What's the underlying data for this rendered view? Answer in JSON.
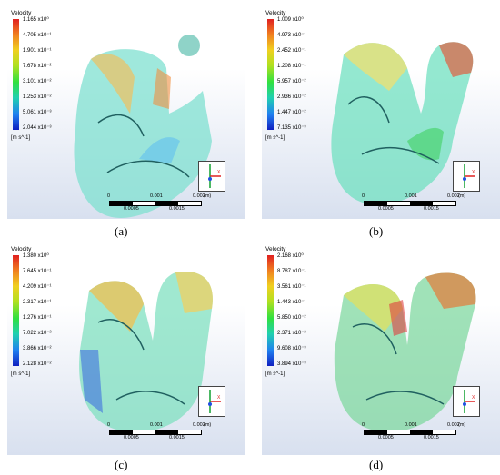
{
  "panels": [
    {
      "legend_title": "Velocity",
      "ticks": [
        "1.165 x10⁰",
        "4.705 x10⁻¹",
        "1.901 x10⁻¹",
        "7.678 x10⁻²",
        "3.101 x10⁻²",
        "1.253 x10⁻²",
        "5.061 x10⁻³",
        "2.044 x10⁻³"
      ],
      "unit": "[m s^-1]",
      "scale_top": [
        "0",
        "0.001",
        "0.002",
        "(m)"
      ],
      "scale_bottom": [
        "0.0005",
        "0.0015"
      ],
      "caption": "(a)"
    },
    {
      "legend_title": "Velocity",
      "ticks": [
        "1.009 x10⁰",
        "4.973 x10⁻¹",
        "2.452 x10⁻¹",
        "1.208 x10⁻¹",
        "5.957 x10⁻²",
        "2.936 x10⁻²",
        "1.447 x10⁻²",
        "7.135 x10⁻³"
      ],
      "unit": "[m s^-1]",
      "scale_top": [
        "0",
        "0.001",
        "0.002",
        "(m)"
      ],
      "scale_bottom": [
        "0.0005",
        "0.0015"
      ],
      "caption": "(b)"
    },
    {
      "legend_title": "Velocity",
      "ticks": [
        "1.380 x10⁰",
        "7.645 x10⁻¹",
        "4.209 x10⁻¹",
        "2.317 x10⁻¹",
        "1.276 x10⁻¹",
        "7.022 x10⁻²",
        "3.866 x10⁻²",
        "2.128 x10⁻²"
      ],
      "unit": "[m s^-1]",
      "scale_top": [
        "0",
        "0.001",
        "0.002",
        "(m)"
      ],
      "scale_bottom": [
        "0.0005",
        "0.0015"
      ],
      "caption": "(c)"
    },
    {
      "legend_title": "Velocity",
      "ticks": [
        "2.168 x10⁰",
        "8.787 x10⁻¹",
        "3.561 x10⁻¹",
        "1.443 x10⁻¹",
        "5.850 x10⁻²",
        "2.371 x10⁻²",
        "9.608 x10⁻³",
        "3.894 x10⁻³"
      ],
      "unit": "[m s^-1]",
      "scale_top": [
        "0",
        "0.001",
        "0.002",
        "(m)"
      ],
      "scale_bottom": [
        "0.0005",
        "0.0015"
      ],
      "caption": "(d)"
    }
  ],
  "triad": {
    "x": "X",
    "y": "Y",
    "z": "Z"
  },
  "colors": {
    "high": "#e02020",
    "mid": "#30e040",
    "low": "#1020c0",
    "background_bottom": "#d8e0ef",
    "axis_x": "#e02020",
    "axis_y": "#10a030",
    "axis_z": "#2050e0"
  }
}
